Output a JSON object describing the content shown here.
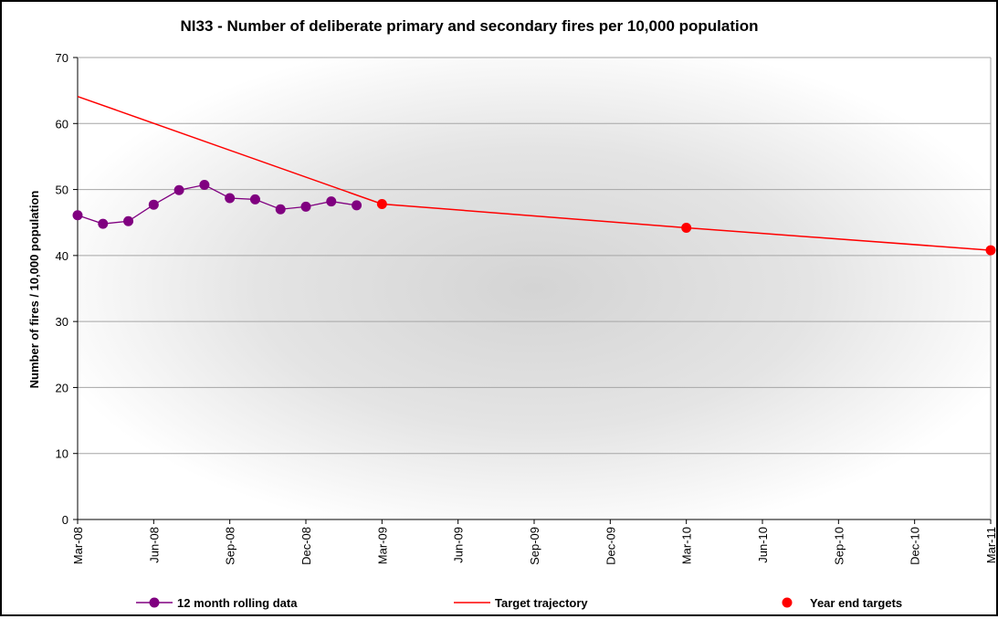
{
  "chart_data": {
    "type": "line",
    "title": "NI33 - Number of deliberate primary and secondary fires per 10,000 population",
    "xlabel": "",
    "ylabel": "Number of fires / 10,000 population",
    "ylim": [
      0,
      70
    ],
    "yticks": [
      0,
      10,
      20,
      30,
      40,
      50,
      60,
      70
    ],
    "grid": true,
    "legend_position": "bottom",
    "x_tick_labels": [
      "Mar-08",
      "Jun-08",
      "Sep-08",
      "Dec-08",
      "Mar-09",
      "Jun-09",
      "Sep-09",
      "Dec-09",
      "Mar-10",
      "Jun-10",
      "Sep-10",
      "Dec-10",
      "Mar-11"
    ],
    "series": [
      {
        "name": "12 month rolling data",
        "kind": "line-markers",
        "color": "#800080",
        "x": [
          "Mar-08",
          "Apr-08",
          "May-08",
          "Jun-08",
          "Jul-08",
          "Aug-08",
          "Sep-08",
          "Oct-08",
          "Nov-08",
          "Dec-08",
          "Jan-09",
          "Feb-09"
        ],
        "values": [
          46.1,
          44.8,
          45.2,
          47.7,
          49.9,
          50.7,
          48.7,
          48.5,
          47.0,
          47.4,
          48.2,
          47.6
        ]
      },
      {
        "name": "Target trajectory",
        "kind": "line",
        "color": "#ff0000",
        "x": [
          "Mar-08",
          "Mar-09",
          "Mar-10",
          "Mar-11"
        ],
        "values": [
          64.1,
          47.8,
          44.2,
          40.8
        ]
      },
      {
        "name": "Year end targets",
        "kind": "markers",
        "color": "#ff0000",
        "x": [
          "Mar-09",
          "Mar-10",
          "Mar-11"
        ],
        "values": [
          47.8,
          44.2,
          40.8
        ]
      }
    ]
  }
}
